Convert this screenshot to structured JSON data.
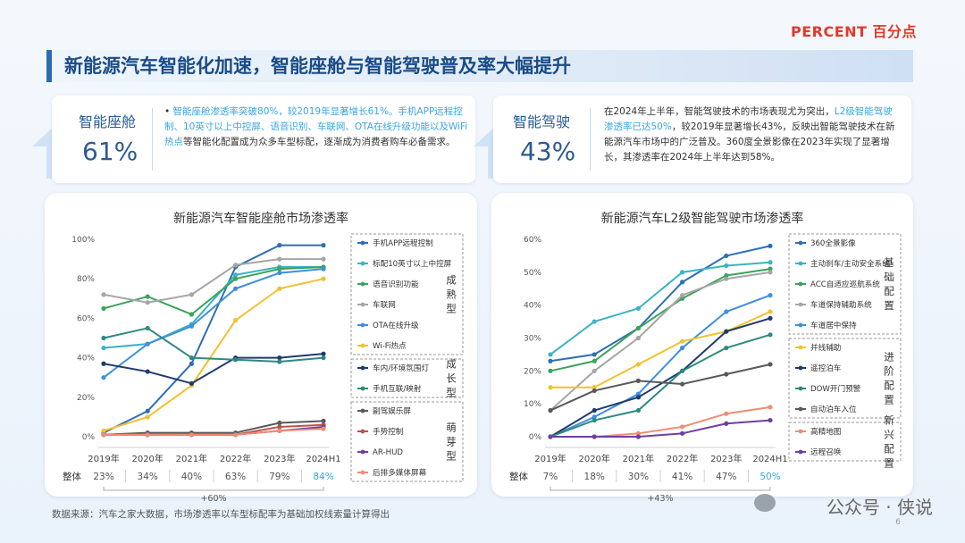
{
  "brand": "PERCENT 百分点",
  "title": "新能源汽车智能化加速，智能座舱与智能驾驶普及率大幅提升",
  "kpis": {
    "cockpit": {
      "label": "智能座舱",
      "value": "61%",
      "text_parts": [
        {
          "t": "• ",
          "hl": false
        },
        {
          "t": "智能座舱渗透率突破80%，较2019年显著增长61%。手机APP远程控制、10英寸以上中控屏、语音识别、车联网、OTA在线升级功能以及WiFi热点",
          "hl": true
        },
        {
          "t": "等智能化配置成为众多车型标配，逐渐成为消费者购车必备需求。",
          "hl": false
        }
      ]
    },
    "driving": {
      "label": "智能驾驶",
      "value": "43%",
      "text_parts": [
        {
          "t": "在2024年上半年，智能驾驶技术的市场表现尤为突出，",
          "hl": false
        },
        {
          "t": "L2级智能驾驶渗透率已达50%",
          "hl": true
        },
        {
          "t": "，较2019年显著增长43%，反映出智能驾驶技术在新能源汽车市场中的广泛普及。360度全景影像在2023年实现了显著增长，其渗透率在2024年上半年达到58%。",
          "hl": false
        }
      ]
    }
  },
  "chart_data": [
    {
      "type": "line",
      "title": "新能源汽车智能座舱市场渗透率",
      "x": [
        "2019年",
        "2020年",
        "2021年",
        "2022年",
        "2023年",
        "2024H1"
      ],
      "ylim": [
        0,
        100
      ],
      "yticks": [
        "0%",
        "20%",
        "40%",
        "60%",
        "80%",
        "100%"
      ],
      "series": [
        {
          "name": "手机APP远程控制",
          "color": "#2e6fb5",
          "values": [
            2,
            13,
            37,
            86,
            97,
            97
          ],
          "group": 0
        },
        {
          "name": "标配10英寸以上中控屏",
          "color": "#3bb3c3",
          "values": [
            45,
            47,
            57,
            82,
            86,
            86
          ],
          "group": 0
        },
        {
          "name": "语音识别功能",
          "color": "#3ca35c",
          "values": [
            65,
            71,
            62,
            80,
            85,
            86
          ],
          "group": 0
        },
        {
          "name": "车联网",
          "color": "#a6a6a6",
          "values": [
            72,
            68,
            72,
            87,
            90,
            90
          ],
          "group": 0
        },
        {
          "name": "OTA在线升级",
          "color": "#3d8fe0",
          "values": [
            30,
            47,
            56,
            75,
            83,
            85
          ],
          "group": 0
        },
        {
          "name": "Wi-Fi热点",
          "color": "#f2c12e",
          "values": [
            3,
            10,
            26,
            59,
            75,
            80
          ],
          "group": 0
        },
        {
          "name": "车内/环境氛围灯",
          "color": "#1f3b6e",
          "values": [
            37,
            33,
            27,
            40,
            40,
            42
          ],
          "group": 1
        },
        {
          "name": "手机互联/映射",
          "color": "#2e8a7e",
          "values": [
            50,
            55,
            40,
            39,
            38,
            40
          ],
          "group": 1
        },
        {
          "name": "副驾娱乐屏",
          "color": "#595959",
          "values": [
            1,
            2,
            2,
            2,
            7,
            8
          ],
          "group": 2
        },
        {
          "name": "手势控制",
          "color": "#c0504d",
          "values": [
            1,
            1,
            1,
            1,
            5,
            6
          ],
          "group": 2
        },
        {
          "name": "AR-HUD",
          "color": "#6f3fa0",
          "values": [
            1,
            1,
            1,
            1,
            3,
            5
          ],
          "group": 2
        },
        {
          "name": "后排多媒体屏幕",
          "color": "#ed8e74",
          "values": [
            1,
            1,
            1,
            1,
            3,
            4
          ],
          "group": 2
        }
      ],
      "groups": [
        "成熟型",
        "成长型",
        "萌芽型"
      ],
      "overall_label": "整体",
      "overall": [
        "23%",
        "34%",
        "40%",
        "63%",
        "79%",
        "84%"
      ],
      "growth": "+60%"
    },
    {
      "type": "line",
      "title": "新能源汽车L2级智能驾驶市场渗透率",
      "x": [
        "2019年",
        "2020年",
        "2021年",
        "2022年",
        "2023年",
        "2024H1"
      ],
      "ylim": [
        0,
        60
      ],
      "yticks": [
        "0%",
        "10%",
        "20%",
        "30%",
        "40%",
        "50%",
        "60%"
      ],
      "series": [
        {
          "name": "360全景影像",
          "color": "#2e6fb5",
          "values": [
            23,
            25,
            33,
            47,
            55,
            58
          ],
          "group": 0
        },
        {
          "name": "主动刹车/主动安全系统",
          "color": "#3bb3c3",
          "values": [
            25,
            35,
            39,
            50,
            52,
            53
          ],
          "group": 0
        },
        {
          "name": "ACC自适应巡航系统",
          "color": "#3ca35c",
          "values": [
            20,
            23,
            33,
            42,
            49,
            51
          ],
          "group": 0
        },
        {
          "name": "车道保持辅助系统",
          "color": "#a6a6a6",
          "values": [
            8,
            20,
            30,
            43,
            48,
            50
          ],
          "group": 0
        },
        {
          "name": "车道居中保持",
          "color": "#3d8fe0",
          "values": [
            0,
            6,
            13,
            27,
            38,
            43
          ],
          "group": 0
        },
        {
          "name": "并线辅助",
          "color": "#f2c12e",
          "values": [
            15,
            15,
            22,
            29,
            32,
            38
          ],
          "group": 1
        },
        {
          "name": "遥控泊车",
          "color": "#1f3b6e",
          "values": [
            0,
            8,
            12,
            20,
            32,
            36
          ],
          "group": 1
        },
        {
          "name": "DOW开门预警",
          "color": "#2e8a7e",
          "values": [
            0,
            5,
            8,
            20,
            27,
            31
          ],
          "group": 1
        },
        {
          "name": "自动泊车入位",
          "color": "#595959",
          "values": [
            8,
            14,
            17,
            16,
            19,
            22
          ],
          "group": 1
        },
        {
          "name": "高精地图",
          "color": "#ed8e74",
          "values": [
            0,
            0,
            1,
            3,
            7,
            9
          ],
          "group": 2
        },
        {
          "name": "远程召唤",
          "color": "#6f3fa0",
          "values": [
            0,
            0,
            0,
            1,
            4,
            5
          ],
          "group": 2
        }
      ],
      "groups": [
        "基础配置",
        "进阶配置",
        "新兴配置"
      ],
      "overall_label": "整体",
      "overall": [
        "7%",
        "18%",
        "30%",
        "41%",
        "47%",
        "50%"
      ],
      "growth": "+43%"
    }
  ],
  "source": "数据来源：汽车之家大数据，市场渗透率以车型标配率为基础加权线索量计算得出",
  "watermark": "公众号 · 侠说",
  "page_number": "6"
}
